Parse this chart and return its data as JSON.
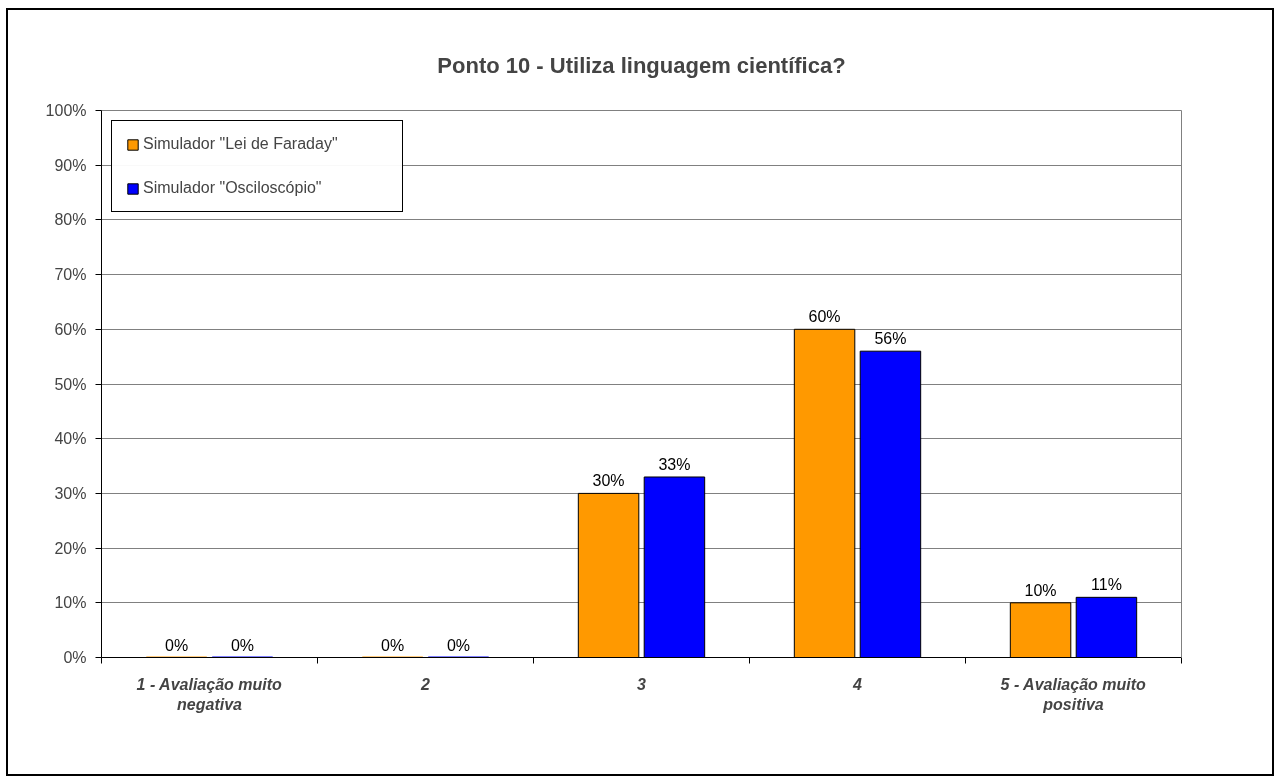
{
  "chart_data": {
    "type": "bar",
    "title": "Ponto 10 - Utiliza linguagem científica?",
    "categories": [
      "1 - Avaliação muito negativa",
      "2",
      "3",
      "4",
      "5 - Avaliação muito positiva"
    ],
    "series": [
      {
        "name": "Simulador \"Lei de Faraday\"",
        "color": "#ff9900",
        "values": [
          0,
          0,
          30,
          60,
          10
        ],
        "value_labels": [
          "0%",
          "0%",
          "30%",
          "60%",
          "10%"
        ]
      },
      {
        "name": "Simulador \"Osciloscópio\"",
        "color": "#0000ff",
        "values": [
          0,
          0,
          33,
          56,
          11
        ],
        "value_labels": [
          "0%",
          "0%",
          "33%",
          "56%",
          "11%"
        ]
      }
    ],
    "ylim": [
      0,
      100
    ],
    "yticks": [
      {
        "value": 0,
        "label": "0%"
      },
      {
        "value": 10,
        "label": "10%"
      },
      {
        "value": 20,
        "label": "20%"
      },
      {
        "value": 30,
        "label": "30%"
      },
      {
        "value": 40,
        "label": "40%"
      },
      {
        "value": 50,
        "label": "50%"
      },
      {
        "value": 60,
        "label": "60%"
      },
      {
        "value": 70,
        "label": "70%"
      },
      {
        "value": 80,
        "label": "80%"
      },
      {
        "value": 90,
        "label": "90%"
      },
      {
        "value": 100,
        "label": "100%"
      }
    ],
    "grid": "y",
    "legend": "top left"
  }
}
